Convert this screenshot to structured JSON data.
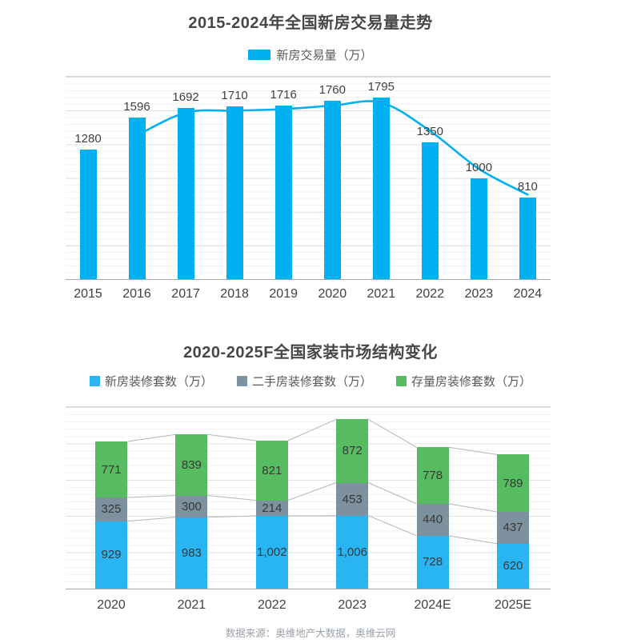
{
  "footer": {
    "source": "数据来源：奥维地产大数据，奥维云网"
  },
  "chart_data": [
    {
      "type": "bar",
      "title": "2015-2024年全国新房交易量走势",
      "categories": [
        "2015",
        "2016",
        "2017",
        "2018",
        "2019",
        "2020",
        "2021",
        "2022",
        "2023",
        "2024"
      ],
      "series": [
        {
          "name": "新房交易量（万）",
          "type": "bar",
          "color": "#00B1F2",
          "values": [
            1280,
            1596,
            1692,
            1710,
            1716,
            1760,
            1795,
            1350,
            1000,
            810
          ]
        }
      ],
      "line_overlay": {
        "color": "#00B1F2",
        "smoothed": true,
        "start_category": "2016",
        "approx_values": [
          1420,
          1645,
          1665,
          1680,
          1715,
          1745,
          1465,
          1090,
          835
        ]
      },
      "xlabel": "",
      "ylabel": "",
      "ylim": [
        0,
        2000
      ],
      "grid": "horizontal-minor",
      "legend_position": "top"
    },
    {
      "type": "stacked-bar",
      "title": "2020-2025F全国家装市场结构变化",
      "categories": [
        "2020",
        "2021",
        "2022",
        "2023",
        "2024E",
        "2025E"
      ],
      "series": [
        {
          "name": "新房装修套数（万）",
          "color": "#29B5F2",
          "values": [
            929,
            983,
            1002,
            1006,
            728,
            620
          ]
        },
        {
          "name": "二手房装修套数（万）",
          "color": "#7D929E",
          "values": [
            325,
            300,
            214,
            453,
            440,
            437
          ]
        },
        {
          "name": "存量房装修套数（万）",
          "color": "#57BC61",
          "values": [
            771,
            839,
            821,
            872,
            778,
            789
          ]
        }
      ],
      "xlabel": "",
      "ylabel": "",
      "ylim": [
        0,
        2500
      ],
      "series_lines": true,
      "series_line_color": "#b5b5b5",
      "grid": "horizontal-minor",
      "legend_position": "top"
    }
  ]
}
